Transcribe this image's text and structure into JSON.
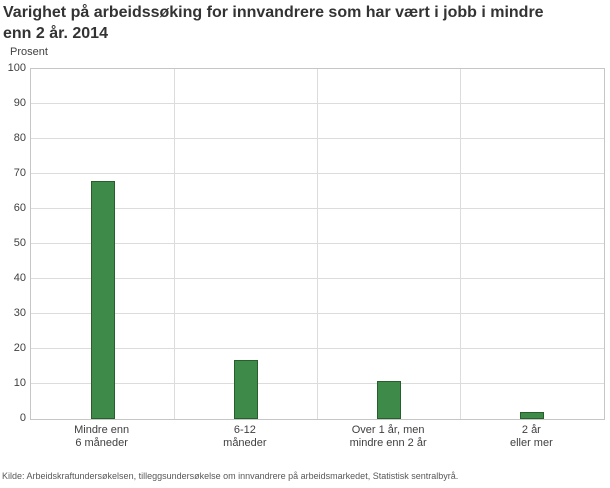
{
  "chart_data": {
    "type": "bar",
    "title": "Varighet på arbeidssøking for innvandrere som har vært i jobb i mindre enn 2 år. 2014",
    "unit_label": "Prosent",
    "categories": [
      "Mindre enn\n6 måneder",
      "6-12\nmåneder",
      "Over 1 år, men\nmindre enn 2 år",
      "2 år\neller mer"
    ],
    "values": [
      68,
      17,
      11,
      2
    ],
    "ylim": [
      0,
      100
    ],
    "yticks": [
      0,
      10,
      20,
      30,
      40,
      50,
      60,
      70,
      80,
      90,
      100
    ],
    "legend": "none",
    "grid": "horizontal gridlines every 10, vertical separators between categories",
    "colors": {
      "bar_fill": "#3e8a48",
      "bar_border": "#275e2c",
      "gridline": "#dcdcdc",
      "plot_border": "#c6c6c6",
      "title_text": "#333333",
      "tick_text": "#404040",
      "source_text": "#58585a"
    },
    "source": "Kilde: Arbeidskraftundersøkelsen, tilleggsundersøkelse om innvandrere på arbeidsmarkedet, Statistisk sentralbyrå."
  }
}
